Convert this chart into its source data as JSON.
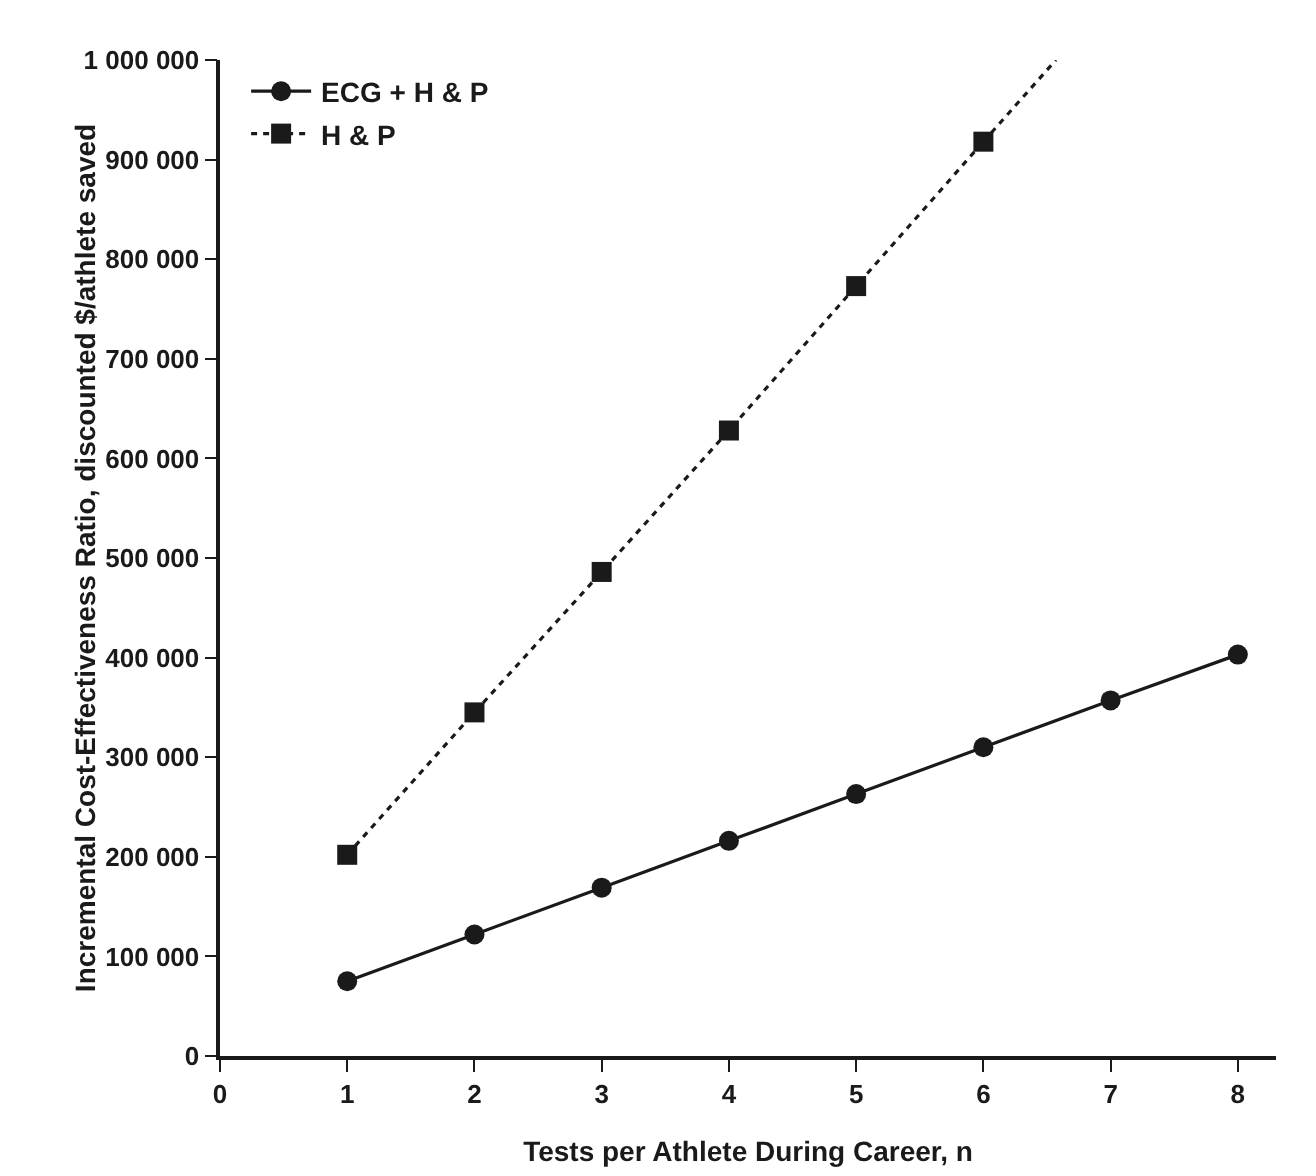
{
  "chart_data": {
    "type": "line",
    "xlabel": "Tests per Athlete During Career, n",
    "ylabel": "Incremental Cost-Effectiveness Ratio, discounted $/athlete saved",
    "xlim": [
      0,
      8.3
    ],
    "xticks": [
      0,
      1,
      2,
      3,
      4,
      5,
      6,
      7,
      8
    ],
    "ylim": [
      0,
      1000000
    ],
    "yticks": [
      0,
      {
        "value": 100000,
        "label": "100 000"
      },
      {
        "value": 200000,
        "label": "200 000"
      },
      {
        "value": 300000,
        "label": "300 000"
      },
      {
        "value": 400000,
        "label": "400 000"
      },
      {
        "value": 500000,
        "label": "500 000"
      },
      {
        "value": 600000,
        "label": "600 000"
      },
      {
        "value": 700000,
        "label": "700 000"
      },
      {
        "value": 800000,
        "label": "800 000"
      },
      {
        "value": 900000,
        "label": "900 000"
      },
      {
        "value": 1000000,
        "label": "1 000 000"
      }
    ],
    "grid": false,
    "legend": "top left",
    "series": [
      {
        "name": "ECG + H & P",
        "color": "#1a1a1a",
        "x": [
          1,
          2,
          3,
          4,
          5,
          6,
          7,
          8
        ],
        "values": [
          75000,
          122000,
          169000,
          216000,
          263000,
          310000,
          357000,
          403000
        ],
        "marker": "circle",
        "line_style": "solid"
      },
      {
        "name": "H & P",
        "color": "#1a1a1a",
        "x": [
          1,
          2,
          3,
          4,
          5,
          6
        ],
        "values": [
          202000,
          345000,
          486000,
          628000,
          773000,
          918000
        ],
        "marker": "square",
        "line_style": "dotted"
      },
      {
        "type": "line",
        "color": "#1a1a1a",
        "x": [
          6,
          6.57
        ],
        "values": [
          918000,
          1000000
        ],
        "marker": "none",
        "line_style": "dotted"
      }
    ]
  }
}
